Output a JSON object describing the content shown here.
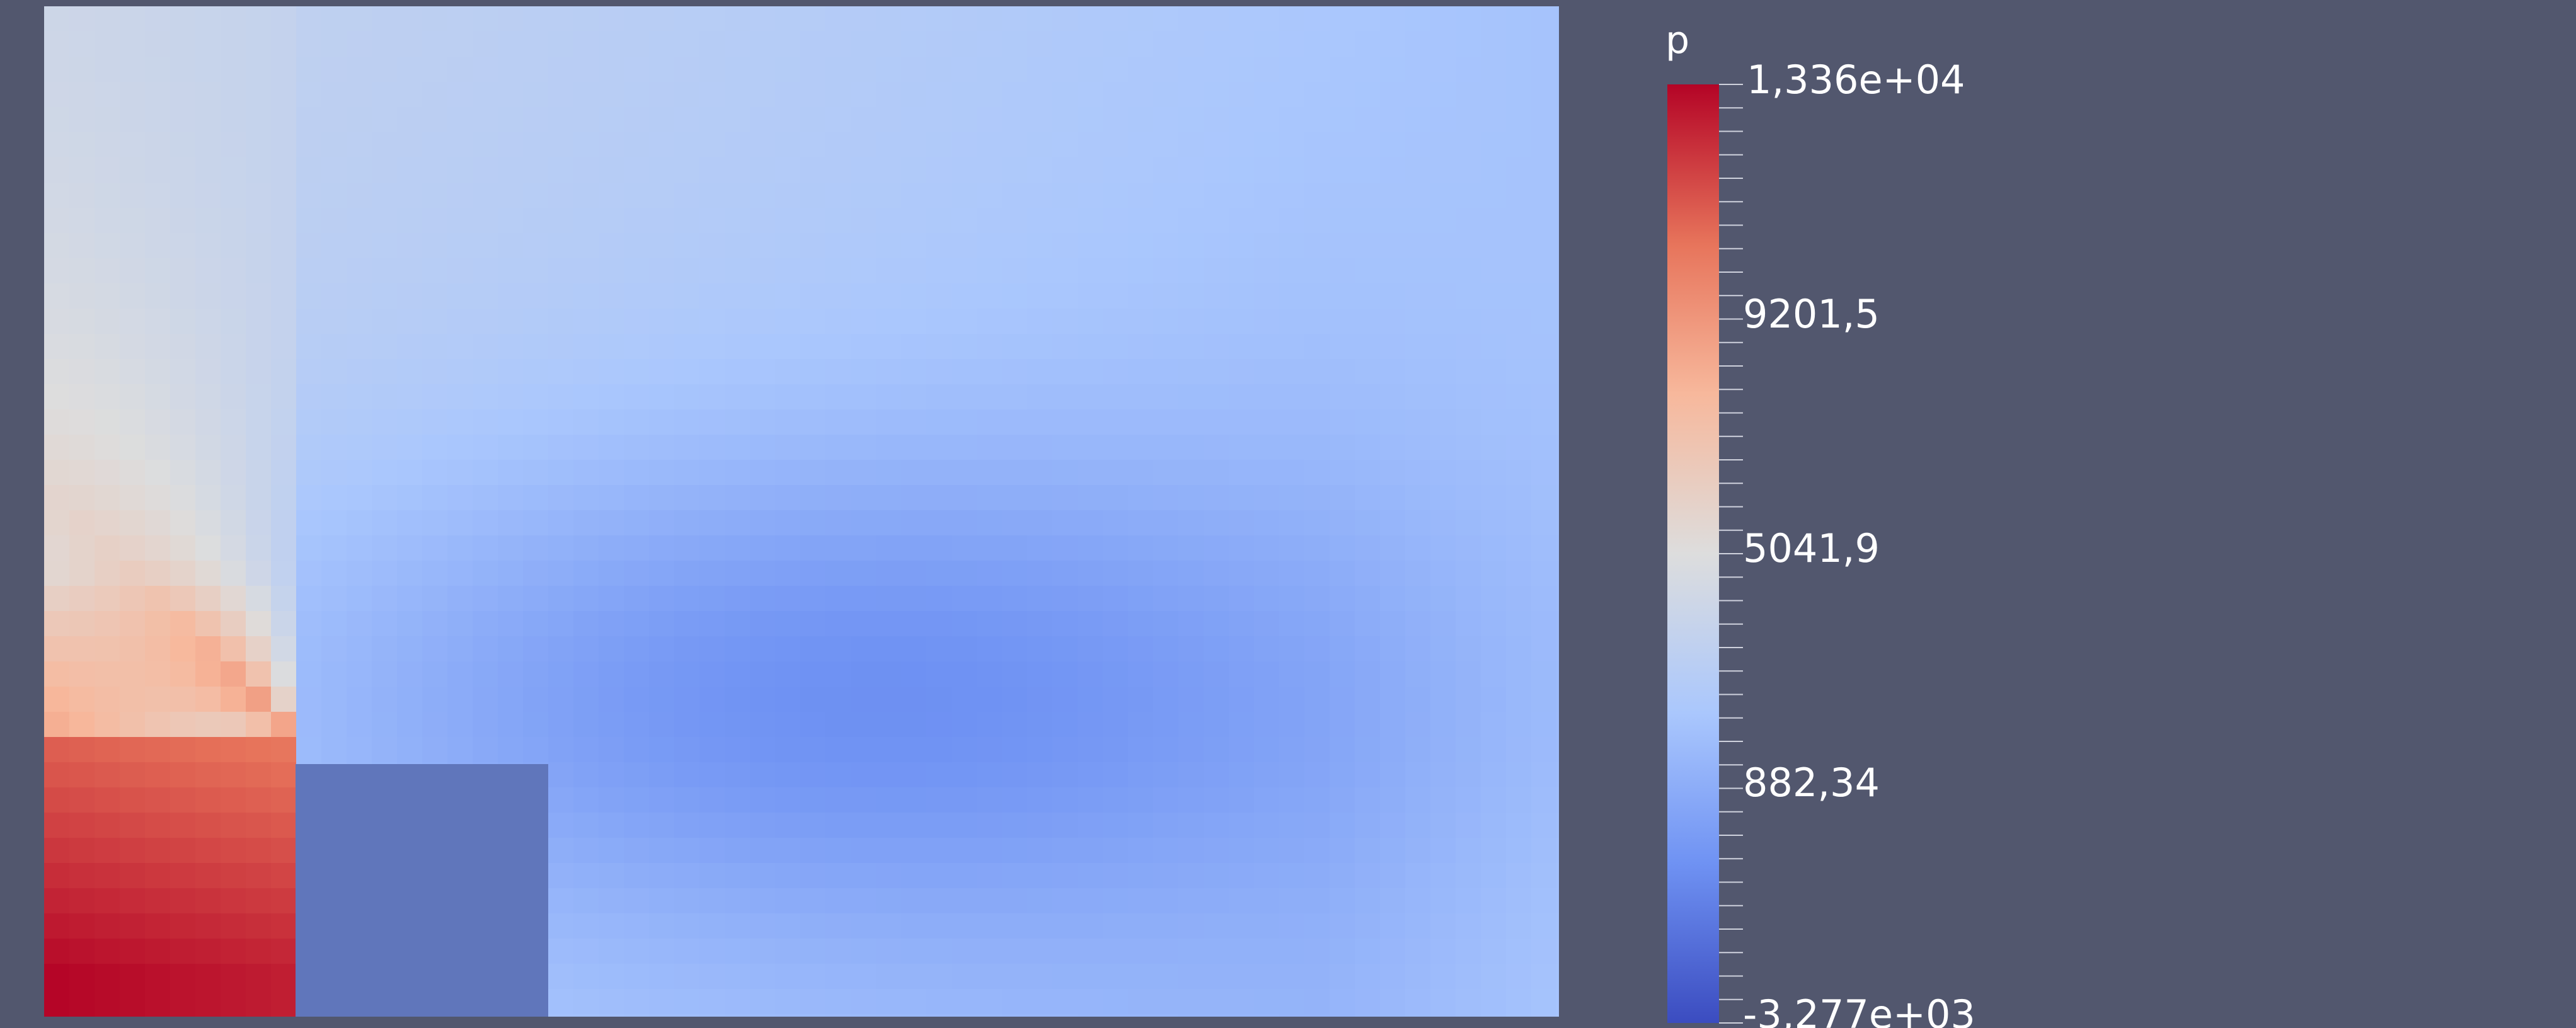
{
  "scalar_bar": {
    "title": "p",
    "labels": [
      "1,336e+04",
      "9201,5",
      "5041,9",
      "882,34",
      "-3,277e+03"
    ]
  },
  "colors": {
    "background": "#52576e",
    "colormap": [
      "#3b4cc0",
      "#6f92f3",
      "#aac7fd",
      "#dddddd",
      "#f7b89c",
      "#e7745b",
      "#b40426"
    ]
  }
}
